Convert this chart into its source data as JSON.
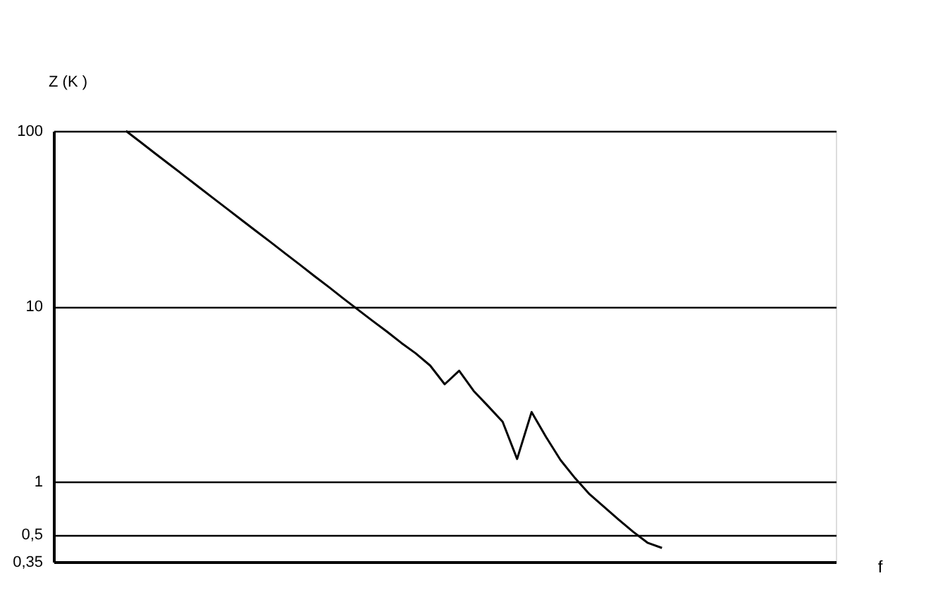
{
  "chart_data": {
    "type": "line",
    "xlabel": "f",
    "ylabel": "Z (K )",
    "log": "y",
    "grid": "y",
    "marker": "none",
    "line_style": "solid",
    "categories": [
      null,
      null,
      null,
      null,
      null,
      null,
      null,
      null,
      null,
      null,
      null,
      null,
      null,
      null,
      null,
      null,
      null,
      null,
      null,
      null,
      null,
      null,
      null,
      null,
      null,
      null,
      null,
      null,
      null,
      null,
      null,
      null,
      null,
      null,
      null,
      null,
      null,
      null,
      null,
      null,
      null,
      null,
      null,
      null,
      null,
      null,
      null,
      null,
      null,
      null,
      null,
      null,
      null,
      null,
      null
    ],
    "series": [
      {
        "color": "#000000",
        "values": [
          null,
          null,
          null,
          null,
          null,
          100,
          86.5,
          74.6,
          64.5,
          55.7,
          48.1,
          41.5,
          35.9,
          31.0,
          26.8,
          23.2,
          20.0,
          17.3,
          14.9,
          12.9,
          11.1,
          9.6,
          8.3,
          7.2,
          6.2,
          5.4,
          4.6,
          3.6,
          4.3,
          3.3,
          2.7,
          2.2,
          1.35,
          2.5,
          1.8,
          1.33,
          1.05,
          0.85,
          0.72,
          0.61,
          0.52,
          0.45,
          0.42,
          null,
          null,
          null,
          null,
          null,
          null,
          null,
          null,
          null,
          null,
          null,
          null
        ]
      }
    ],
    "ylim": [
      0.35,
      100
    ],
    "yticks": [
      {
        "value": 0.35,
        "label": "0,35"
      },
      {
        "value": 0.5,
        "label": "0,5"
      },
      1,
      10,
      100
    ]
  }
}
